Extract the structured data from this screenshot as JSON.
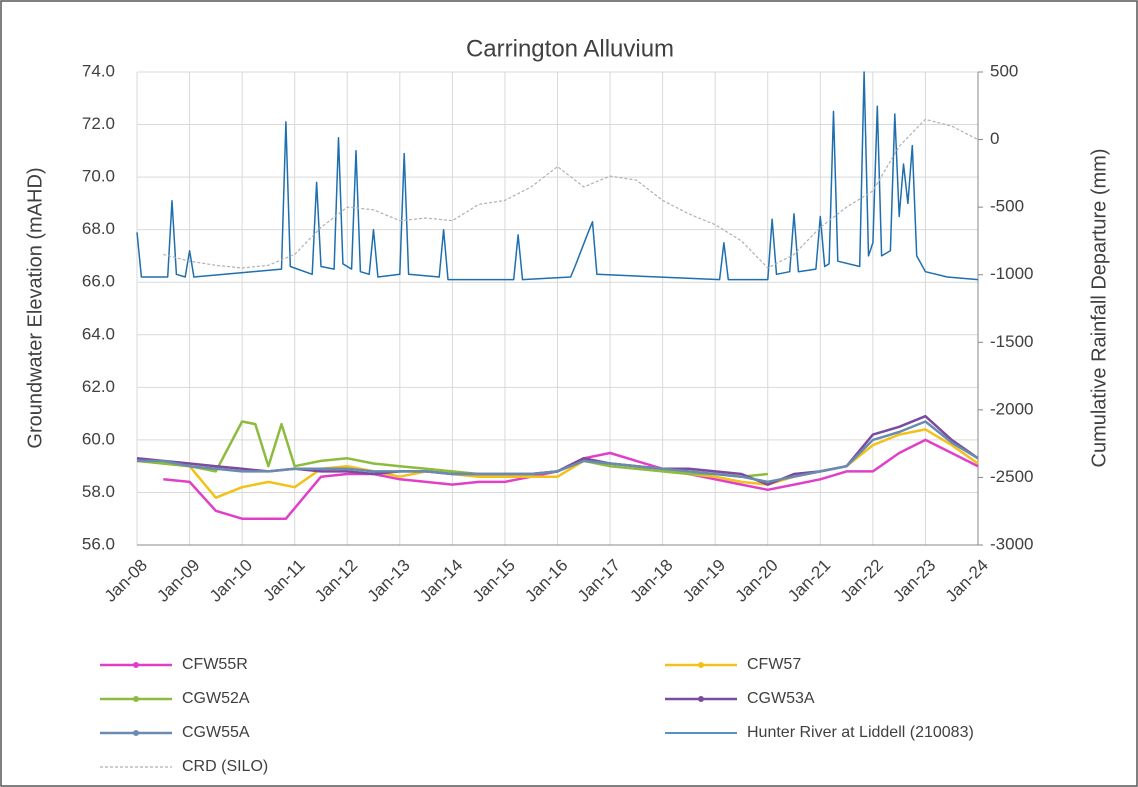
{
  "chart_data": {
    "type": "line",
    "title": "Carrington Alluvium",
    "y_label": "Groundwater Elevation (mAHD)",
    "y2_label": "Cumulative Rainfall Departure (mm)",
    "grid": true,
    "xlim": [
      "2008-01",
      "2024-01"
    ],
    "xticks": [
      {
        "value": "2008-01",
        "label": "Jan-08"
      },
      {
        "value": "2009-01",
        "label": "Jan-09"
      },
      {
        "value": "2010-01",
        "label": "Jan-10"
      },
      {
        "value": "2011-01",
        "label": "Jan-11"
      },
      {
        "value": "2012-01",
        "label": "Jan-12"
      },
      {
        "value": "2013-01",
        "label": "Jan-13"
      },
      {
        "value": "2014-01",
        "label": "Jan-14"
      },
      {
        "value": "2015-01",
        "label": "Jan-15"
      },
      {
        "value": "2016-01",
        "label": "Jan-16"
      },
      {
        "value": "2017-01",
        "label": "Jan-17"
      },
      {
        "value": "2018-01",
        "label": "Jan-18"
      },
      {
        "value": "2019-01",
        "label": "Jan-19"
      },
      {
        "value": "2020-01",
        "label": "Jan-20"
      },
      {
        "value": "2021-01",
        "label": "Jan-21"
      },
      {
        "value": "2022-01",
        "label": "Jan-22"
      },
      {
        "value": "2023-01",
        "label": "Jan-23"
      },
      {
        "value": "2024-01",
        "label": "Jan-24"
      }
    ],
    "ylim": [
      56,
      74
    ],
    "yticks": [
      {
        "value": 56,
        "label": "56.0"
      },
      {
        "value": 58,
        "label": "58.0"
      },
      {
        "value": 60,
        "label": "60.0"
      },
      {
        "value": 62,
        "label": "62.0"
      },
      {
        "value": 64,
        "label": "64.0"
      },
      {
        "value": 66,
        "label": "66.0"
      },
      {
        "value": 68,
        "label": "68.0"
      },
      {
        "value": 70,
        "label": "70.0"
      },
      {
        "value": 72,
        "label": "72.0"
      },
      {
        "value": 74,
        "label": "74.0"
      }
    ],
    "y2lim": [
      -3000,
      500
    ],
    "y2ticks": [
      -3000,
      -2500,
      -2000,
      -1500,
      -1000,
      -500,
      0,
      500
    ],
    "series": [
      {
        "name": "CFW55R",
        "color": "#e040c8",
        "marker": true,
        "x": [
          "2008-07",
          "2009-01",
          "2009-07",
          "2010-01",
          "2010-07",
          "2010-11",
          "2011-07",
          "2012-01",
          "2012-07",
          "2013-01",
          "2013-07",
          "2014-01",
          "2014-07",
          "2015-01",
          "2015-07",
          "2016-01",
          "2016-07",
          "2017-01",
          "2017-07",
          "2018-01",
          "2018-07",
          "2019-01",
          "2019-07",
          "2020-01",
          "2020-07",
          "2021-01",
          "2021-07",
          "2022-01",
          "2022-07",
          "2023-01",
          "2023-07",
          "2024-01"
        ],
        "values": [
          58.5,
          58.4,
          57.3,
          57.0,
          57.0,
          57.0,
          58.6,
          58.7,
          58.7,
          58.5,
          58.4,
          58.3,
          58.4,
          58.4,
          58.6,
          58.8,
          59.3,
          59.5,
          59.2,
          58.9,
          58.7,
          58.5,
          58.3,
          58.1,
          58.3,
          58.5,
          58.8,
          58.8,
          59.5,
          60.0,
          59.5,
          59.0
        ]
      },
      {
        "name": "CFW57",
        "color": "#f2c11a",
        "marker": true,
        "x": [
          "2008-01",
          "2008-07",
          "2009-01",
          "2009-07",
          "2010-01",
          "2010-07",
          "2011-01",
          "2011-07",
          "2012-01",
          "2012-07",
          "2013-01",
          "2013-07",
          "2014-01",
          "2014-07",
          "2015-01",
          "2015-07",
          "2016-01",
          "2016-07",
          "2017-01",
          "2017-07",
          "2018-01",
          "2018-07",
          "2019-01",
          "2019-07",
          "2020-01",
          "2020-07",
          "2021-01",
          "2021-07",
          "2022-01",
          "2022-07",
          "2023-01",
          "2023-07",
          "2024-01"
        ],
        "values": [
          59.2,
          59.1,
          59.0,
          57.8,
          58.2,
          58.4,
          58.2,
          58.9,
          59.0,
          58.8,
          58.6,
          58.8,
          58.7,
          58.6,
          58.6,
          58.6,
          58.6,
          59.2,
          59.1,
          59.0,
          58.9,
          58.7,
          58.6,
          58.4,
          58.3,
          58.6,
          58.8,
          59.0,
          59.8,
          60.2,
          60.4,
          59.8,
          59.1
        ]
      },
      {
        "name": "CGW52A",
        "color": "#8dbb3e",
        "marker": true,
        "x": [
          "2008-01",
          "2008-07",
          "2009-01",
          "2009-07",
          "2010-01",
          "2010-04",
          "2010-07",
          "2010-10",
          "2011-01",
          "2011-07",
          "2012-01",
          "2012-07",
          "2013-01",
          "2013-07",
          "2014-01",
          "2014-07",
          "2015-01",
          "2015-07",
          "2016-01",
          "2016-07",
          "2017-01",
          "2017-07",
          "2018-01",
          "2018-07",
          "2019-01",
          "2019-07",
          "2020-01"
        ],
        "values": [
          59.2,
          59.1,
          59.0,
          58.8,
          60.7,
          60.6,
          59.0,
          60.6,
          59.0,
          59.2,
          59.3,
          59.1,
          59.0,
          58.9,
          58.8,
          58.7,
          58.7,
          58.7,
          58.8,
          59.2,
          59.0,
          58.9,
          58.8,
          58.7,
          58.7,
          58.6,
          58.7
        ]
      },
      {
        "name": "CGW53A",
        "color": "#7b4b9e",
        "marker": true,
        "x": [
          "2008-01",
          "2008-07",
          "2009-01",
          "2009-07",
          "2010-01",
          "2010-07",
          "2011-01",
          "2011-07",
          "2012-01",
          "2012-07",
          "2013-01",
          "2013-07",
          "2014-01",
          "2014-07",
          "2015-01",
          "2015-07",
          "2016-01",
          "2016-07",
          "2017-01",
          "2017-07",
          "2018-01",
          "2018-07",
          "2019-01",
          "2019-07",
          "2020-01",
          "2020-07",
          "2021-01",
          "2021-07",
          "2022-01",
          "2022-07",
          "2023-01",
          "2023-07",
          "2024-01"
        ],
        "values": [
          59.3,
          59.2,
          59.1,
          59.0,
          58.9,
          58.8,
          58.9,
          58.8,
          58.8,
          58.7,
          58.8,
          58.8,
          58.7,
          58.7,
          58.7,
          58.7,
          58.8,
          59.3,
          59.1,
          59.0,
          58.9,
          58.9,
          58.8,
          58.7,
          58.3,
          58.7,
          58.8,
          59.0,
          60.2,
          60.5,
          60.9,
          60.0,
          59.3
        ]
      },
      {
        "name": "CGW55A",
        "color": "#6a8bb0",
        "marker": true,
        "x": [
          "2008-01",
          "2008-07",
          "2009-01",
          "2009-07",
          "2010-01",
          "2010-07",
          "2011-01",
          "2011-07",
          "2012-01",
          "2012-07",
          "2013-01",
          "2013-07",
          "2014-01",
          "2014-07",
          "2015-01",
          "2015-07",
          "2016-01",
          "2016-07",
          "2017-01",
          "2017-07",
          "2018-01",
          "2018-07",
          "2019-01",
          "2019-07",
          "2020-01",
          "2020-07",
          "2021-01",
          "2021-07",
          "2022-01",
          "2022-07",
          "2023-01",
          "2023-07",
          "2024-01"
        ],
        "values": [
          59.2,
          59.2,
          59.0,
          58.9,
          58.8,
          58.8,
          58.9,
          58.9,
          58.9,
          58.8,
          58.8,
          58.8,
          58.7,
          58.7,
          58.7,
          58.7,
          58.8,
          59.2,
          59.1,
          59.0,
          58.9,
          58.8,
          58.7,
          58.6,
          58.4,
          58.6,
          58.8,
          59.0,
          60.0,
          60.3,
          60.7,
          59.9,
          59.3
        ]
      },
      {
        "name": "Hunter River at Liddell (210083)",
        "color": "#1f6fae",
        "marker": false,
        "x": [
          "2008-01",
          "2008-02",
          "2008-08",
          "2008-09",
          "2008-10",
          "2008-12",
          "2009-01",
          "2009-02",
          "2010-10",
          "2010-11",
          "2010-12",
          "2011-05",
          "2011-06",
          "2011-07",
          "2011-10",
          "2011-11",
          "2011-12",
          "2012-02",
          "2012-03",
          "2012-04",
          "2012-06",
          "2012-07",
          "2012-08",
          "2013-01",
          "2013-02",
          "2013-03",
          "2013-10",
          "2013-11",
          "2013-12",
          "2015-03",
          "2015-04",
          "2015-05",
          "2016-04",
          "2016-05",
          "2016-08",
          "2016-09",
          "2016-10",
          "2019-02",
          "2019-03",
          "2019-04",
          "2020-01",
          "2020-02",
          "2020-03",
          "2020-06",
          "2020-07",
          "2020-08",
          "2020-12",
          "2021-01",
          "2021-02",
          "2021-03",
          "2021-04",
          "2021-05",
          "2021-10",
          "2021-11",
          "2021-12",
          "2022-01",
          "2022-02",
          "2022-03",
          "2022-05",
          "2022-06",
          "2022-07",
          "2022-08",
          "2022-09",
          "2022-10",
          "2022-11",
          "2023-01",
          "2023-06",
          "2024-01"
        ],
        "values": [
          67.9,
          66.2,
          66.2,
          69.1,
          66.3,
          66.2,
          67.2,
          66.2,
          66.5,
          72.1,
          66.6,
          66.3,
          69.8,
          66.6,
          66.5,
          71.5,
          66.7,
          66.5,
          71.0,
          66.4,
          66.3,
          68.0,
          66.2,
          66.3,
          70.9,
          66.3,
          66.2,
          68.0,
          66.1,
          66.1,
          67.8,
          66.1,
          66.2,
          66.6,
          67.9,
          68.3,
          66.3,
          66.1,
          67.5,
          66.1,
          66.1,
          68.4,
          66.3,
          66.4,
          68.6,
          66.4,
          66.5,
          68.5,
          66.6,
          66.7,
          72.5,
          66.8,
          66.6,
          74.0,
          67.0,
          67.5,
          72.7,
          67.0,
          67.2,
          72.4,
          68.5,
          70.5,
          69.0,
          71.2,
          67.0,
          66.4,
          66.2,
          66.1
        ]
      },
      {
        "name": "CRD (SILO)",
        "color": "#b0b0b0",
        "dashed": true,
        "marker": false,
        "axis": "y2",
        "x": [
          "2008-07",
          "2009-01",
          "2009-07",
          "2010-01",
          "2010-07",
          "2011-01",
          "2011-07",
          "2012-01",
          "2012-07",
          "2013-01",
          "2013-07",
          "2014-01",
          "2014-07",
          "2015-01",
          "2015-07",
          "2016-01",
          "2016-07",
          "2017-01",
          "2017-07",
          "2018-01",
          "2018-07",
          "2019-01",
          "2019-07",
          "2020-01",
          "2020-07",
          "2021-01",
          "2021-07",
          "2022-01",
          "2022-07",
          "2023-01",
          "2023-07",
          "2024-01"
        ],
        "values": [
          -850,
          -900,
          -930,
          -950,
          -930,
          -850,
          -650,
          -500,
          -520,
          -600,
          -580,
          -600,
          -480,
          -450,
          -350,
          -200,
          -350,
          -270,
          -300,
          -450,
          -550,
          -630,
          -750,
          -950,
          -850,
          -650,
          -500,
          -380,
          -50,
          150,
          100,
          0
        ]
      }
    ]
  }
}
